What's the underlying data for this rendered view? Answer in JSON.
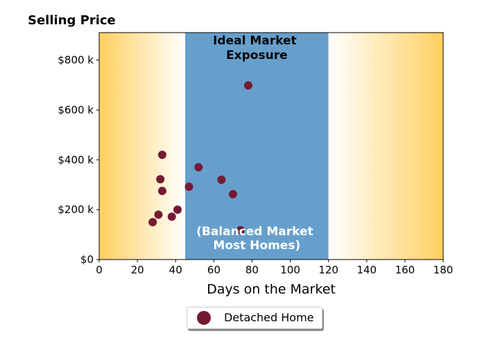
{
  "chart_data": {
    "type": "scatter",
    "title": "Selling Price",
    "xlabel": "Days on the Market",
    "ylabel": "",
    "xlim": [
      0,
      180
    ],
    "ylim": [
      0,
      910000
    ],
    "xticks": [
      0,
      20,
      40,
      60,
      80,
      100,
      120,
      140,
      160,
      180
    ],
    "xtick_labels": [
      "0",
      "20",
      "40",
      "60",
      "80",
      "100",
      "120",
      "140",
      "160",
      "180"
    ],
    "yticks": [
      0,
      200000,
      400000,
      600000,
      800000
    ],
    "ytick_labels": [
      "$0",
      "$200 k",
      "$400 k",
      "$600 k",
      "$800 k"
    ],
    "grid": false,
    "legend_position": "bottom-center",
    "bands": [
      {
        "from": 0,
        "to": 45,
        "style": "gradient",
        "color_edge": "#ffd060",
        "color_inner": "#ffffff"
      },
      {
        "from": 45,
        "to": 120,
        "style": "solid",
        "color": "#679fcc",
        "label": "Ideal Market Exposure"
      },
      {
        "from": 120,
        "to": 180,
        "style": "gradient",
        "color_edge": "#ffd060",
        "color_inner": "#ffffff"
      }
    ],
    "annotations": [
      {
        "text": "(Balanced Market\nMost Homes)",
        "color": "#ffffff"
      }
    ],
    "series": [
      {
        "name": "Detached Home",
        "color": "#751a33",
        "x": [
          28,
          31,
          32,
          33,
          33,
          38,
          41,
          47,
          52,
          64,
          70,
          74,
          78
        ],
        "y": [
          150000,
          180000,
          322000,
          275000,
          420000,
          172000,
          200000,
          292000,
          370000,
          320000,
          262000,
          118000,
          698000
        ]
      }
    ]
  }
}
